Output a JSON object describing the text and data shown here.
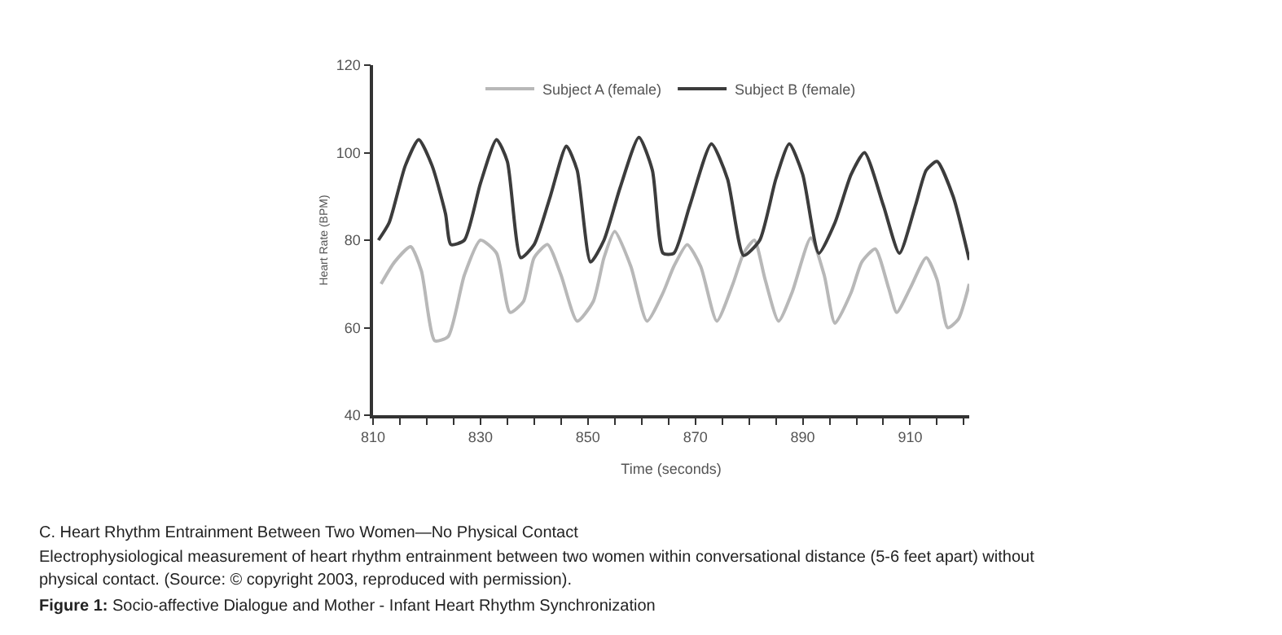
{
  "chart_data": {
    "type": "line",
    "xlabel": "Time (seconds)",
    "ylabel": "Heart Rate (BPM)",
    "xlim": [
      810,
      921
    ],
    "ylim": [
      40,
      120
    ],
    "xticks": [
      810,
      {
        "value": 815,
        "label": null
      },
      {
        "value": 820,
        "label": null
      },
      {
        "value": 825,
        "label": null
      },
      830,
      {
        "value": 835,
        "label": null
      },
      {
        "value": 840,
        "label": null
      },
      {
        "value": 845,
        "label": null
      },
      850,
      {
        "value": 855,
        "label": null
      },
      {
        "value": 860,
        "label": null
      },
      {
        "value": 865,
        "label": null
      },
      870,
      {
        "value": 875,
        "label": null
      },
      {
        "value": 880,
        "label": null
      },
      {
        "value": 885,
        "label": null
      },
      890,
      {
        "value": 895,
        "label": null
      },
      {
        "value": 900,
        "label": null
      },
      {
        "value": 905,
        "label": null
      },
      910,
      {
        "value": 915,
        "label": null
      },
      {
        "value": 920,
        "label": null
      }
    ],
    "yticks": [
      40,
      60,
      80,
      100,
      120
    ],
    "legend": "top",
    "marker": "none",
    "line_style": "solid",
    "series": [
      {
        "name": "Subject A (female)",
        "color": "#b8b8b8",
        "x": [
          811.5,
          814,
          817,
          819,
          821.5,
          824,
          827,
          830,
          833,
          835.5,
          838,
          840,
          842.5,
          845,
          848,
          851,
          853,
          855,
          858,
          861,
          864,
          866,
          868.5,
          871,
          874,
          877,
          879,
          881,
          883,
          885.5,
          888,
          891.5,
          894,
          896,
          899,
          901,
          903.5,
          906,
          907.5,
          910,
          913,
          915,
          917,
          919,
          921
        ],
        "values": [
          70,
          75,
          78.5,
          73,
          57,
          58,
          72,
          80,
          77,
          63.5,
          66,
          76,
          79,
          72,
          61.5,
          66,
          76,
          82,
          74,
          61.5,
          68,
          74,
          79,
          74,
          61.5,
          70,
          77,
          80,
          71,
          61.5,
          68,
          80.5,
          72,
          61,
          68,
          75,
          78,
          69,
          63.5,
          69,
          76,
          71,
          60,
          62,
          70
        ]
      },
      {
        "name": "Subject B (female)",
        "color": "#3c3c3c",
        "x": [
          811,
          813,
          816,
          818.5,
          821,
          823.5,
          824.5,
          827,
          830,
          833,
          835,
          837.5,
          840,
          843,
          846,
          848,
          850.5,
          853,
          856,
          859.5,
          862,
          864,
          866,
          869,
          873,
          876,
          879,
          882,
          885,
          887.5,
          890,
          893,
          896,
          899,
          901.5,
          905,
          908,
          911,
          913,
          915,
          918,
          921
        ],
        "values": [
          80,
          84,
          97,
          103,
          97,
          86,
          79,
          80,
          93,
          103,
          98,
          76,
          79,
          90,
          101.5,
          96,
          75,
          80,
          92,
          103.5,
          96,
          77,
          77,
          88,
          102,
          94,
          76.5,
          80,
          94,
          102,
          95,
          77,
          84,
          95,
          100,
          88,
          77,
          88,
          96,
          98,
          90,
          75.5
        ]
      }
    ],
    "annotations": [
      "C. Heart Rhythm Entrainment Between Two Women—No Physical Contact",
      "Electrophysiological measurement of heart rhythm entrainment between two women within conversational distance (5-6 feet apart) without",
      "physical contact. (Source: © copyright 2003, reproduced with permission).",
      "Figure 1: Socio-affective Dialogue and Mother - Infant Heart Rhythm Synchronization"
    ]
  }
}
